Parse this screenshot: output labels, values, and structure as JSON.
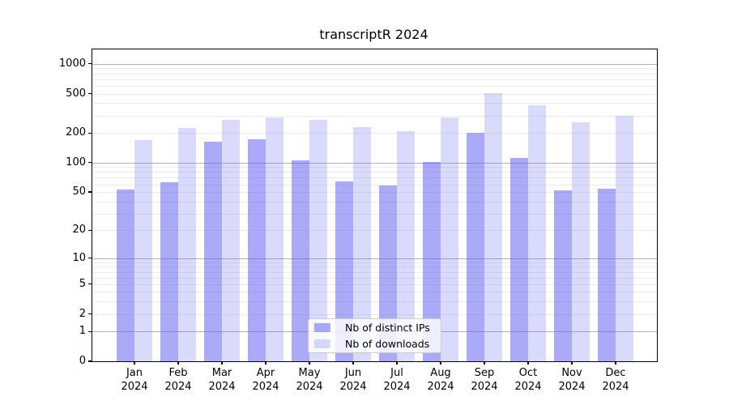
{
  "title": "transcriptR 2024",
  "chart_data": {
    "type": "bar",
    "title": "transcriptR 2024",
    "categories": [
      "Jan",
      "Feb",
      "Mar",
      "Apr",
      "May",
      "Jun",
      "Jul",
      "Aug",
      "Sep",
      "Oct",
      "Nov",
      "Dec"
    ],
    "category_year": "2024",
    "series": [
      {
        "name": "Nb of distinct IPs",
        "color": "rgba(85,85,240,0.5)",
        "approx_hex": "#aaaaf7",
        "values": [
          53,
          63,
          162,
          174,
          106,
          64,
          58,
          101,
          199,
          112,
          52,
          54
        ]
      },
      {
        "name": "Nb of downloads",
        "color": "rgba(85,85,240,0.22)",
        "approx_hex": "#dadafb",
        "values": [
          168,
          226,
          273,
          285,
          272,
          229,
          210,
          286,
          503,
          379,
          257,
          299
        ]
      }
    ],
    "xlabel": "",
    "ylabel": "",
    "y_ticks": [
      0,
      1,
      2,
      5,
      10,
      20,
      50,
      100,
      200,
      500,
      1000
    ],
    "y_scale": "log1p",
    "ylim": [
      0,
      1400
    ],
    "grid": true,
    "legend_position": "inside lower-center"
  },
  "colors": {
    "major_gridline": "#b2b2b2",
    "minor_gridline": "#ececec",
    "axis": "#000000",
    "legend_border": "#cccccc"
  }
}
